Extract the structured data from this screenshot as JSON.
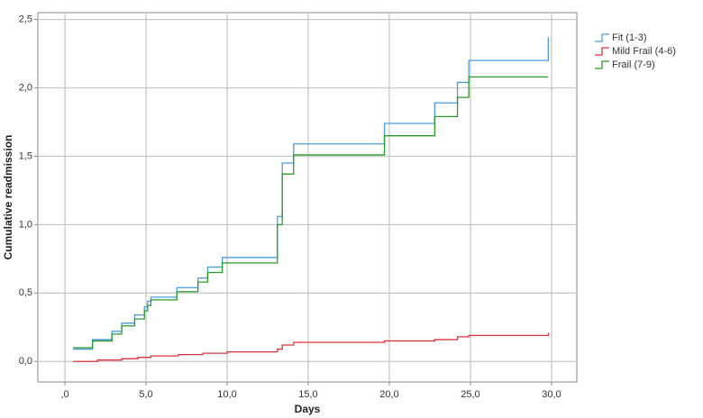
{
  "chart_data": {
    "type": "step",
    "x_label": "Days",
    "y_label": "Cumulative readmission",
    "xlim": [
      -1.67,
      31.56
    ],
    "ylim": [
      -0.15,
      2.55
    ],
    "xticks": [
      {
        "value": 0,
        "label": ",0"
      },
      {
        "value": 5,
        "label": "5,0"
      },
      {
        "value": 10,
        "label": "10,0"
      },
      {
        "value": 15,
        "label": "15,0"
      },
      {
        "value": 20,
        "label": "20,0"
      },
      {
        "value": 25,
        "label": "25,0"
      },
      {
        "value": 30,
        "label": "30,0"
      }
    ],
    "yticks": [
      {
        "value": 0,
        "label": "0,0"
      },
      {
        "value": 0.5,
        "label": "0,5"
      },
      {
        "value": 1,
        "label": "1,0"
      },
      {
        "value": 1.5,
        "label": "1,5"
      },
      {
        "value": 2,
        "label": "2,0"
      },
      {
        "value": 2.5,
        "label": "2,5"
      }
    ],
    "grid": true,
    "legend": "right",
    "series": [
      {
        "name": "Fit (1-3)",
        "color": "#4a9be0",
        "x": [
          0.5,
          1.7,
          2.9,
          3.5,
          4.3,
          4.9,
          5.1,
          5.3,
          6.9,
          8.2,
          8.8,
          9.7,
          13.1,
          13.4,
          14.1,
          19.7,
          22.8,
          24.2,
          24.9,
          29.8
        ],
        "values": [
          0.09,
          0.16,
          0.22,
          0.28,
          0.34,
          0.4,
          0.44,
          0.47,
          0.54,
          0.61,
          0.69,
          0.76,
          1.06,
          1.45,
          1.59,
          1.74,
          1.89,
          2.04,
          2.2,
          2.37
        ]
      },
      {
        "name": "Mild Frail (4-6)",
        "color": "#e0323c",
        "x": [
          0.5,
          2.0,
          3.5,
          4.5,
          5.3,
          7.0,
          8.5,
          10.0,
          13.1,
          13.4,
          14.1,
          19.7,
          22.8,
          24.2,
          24.9,
          29.8
        ],
        "values": [
          0.0,
          0.01,
          0.02,
          0.03,
          0.04,
          0.05,
          0.06,
          0.07,
          0.09,
          0.12,
          0.14,
          0.15,
          0.16,
          0.18,
          0.19,
          0.21
        ]
      },
      {
        "name": "Frail (7-9)",
        "color": "#2a9a2a",
        "x": [
          0.5,
          1.7,
          2.9,
          3.5,
          4.3,
          4.9,
          5.1,
          5.3,
          6.9,
          8.2,
          8.8,
          9.7,
          13.1,
          13.4,
          14.1,
          19.7,
          22.8,
          24.2,
          24.9,
          29.8
        ],
        "values": [
          0.1,
          0.15,
          0.2,
          0.26,
          0.31,
          0.37,
          0.41,
          0.45,
          0.51,
          0.58,
          0.65,
          0.72,
          1.0,
          1.37,
          1.51,
          1.65,
          1.79,
          1.93,
          2.08,
          2.08
        ]
      }
    ]
  }
}
